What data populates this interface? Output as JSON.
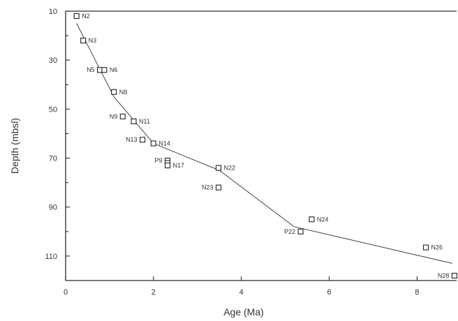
{
  "chart_data": {
    "type": "scatter",
    "xlabel": "Age (Ma)",
    "ylabel": "Depth (mbsl)",
    "xlim": [
      0,
      8.9
    ],
    "ylim": [
      10,
      120
    ],
    "y_inverted": true,
    "grid": false,
    "x_ticks": [
      0,
      2,
      4,
      6,
      8
    ],
    "x_tick_labels": [
      "0",
      "2",
      "4",
      "6",
      "8"
    ],
    "y_ticks": [
      10,
      30,
      50,
      70,
      90,
      110
    ],
    "y_tick_labels": [
      "10",
      "30",
      "50",
      "70",
      "90",
      "110"
    ],
    "y_minor_ticks": [
      20,
      40,
      60,
      80,
      100
    ],
    "points": [
      {
        "label": "N2",
        "x": 0.25,
        "y": 12,
        "label_side": "right"
      },
      {
        "label": "N3",
        "x": 0.4,
        "y": 22,
        "label_side": "right"
      },
      {
        "label": "N5",
        "x": 0.78,
        "y": 34,
        "label_side": "left"
      },
      {
        "label": "N6",
        "x": 0.88,
        "y": 34,
        "label_side": "right"
      },
      {
        "label": "N8",
        "x": 1.1,
        "y": 43,
        "label_side": "right"
      },
      {
        "label": "N9",
        "x": 1.3,
        "y": 53,
        "label_side": "left"
      },
      {
        "label": "N11",
        "x": 1.55,
        "y": 55,
        "label_side": "right"
      },
      {
        "label": "N13",
        "x": 1.75,
        "y": 62.5,
        "label_side": "left"
      },
      {
        "label": "N14",
        "x": 2.0,
        "y": 64,
        "label_side": "right"
      },
      {
        "label": "P9",
        "x": 2.32,
        "y": 71,
        "label_side": "left"
      },
      {
        "label": "",
        "x": 2.32,
        "y": 72,
        "label_side": "none"
      },
      {
        "label": "N17",
        "x": 2.32,
        "y": 73,
        "label_side": "right"
      },
      {
        "label": "N22",
        "x": 3.48,
        "y": 74,
        "label_side": "right"
      },
      {
        "label": "N23",
        "x": 3.48,
        "y": 82,
        "label_side": "left"
      },
      {
        "label": "N24",
        "x": 5.6,
        "y": 95,
        "label_side": "right"
      },
      {
        "label": "P22",
        "x": 5.35,
        "y": 100,
        "label_side": "left"
      },
      {
        "label": "N26",
        "x": 8.2,
        "y": 106.5,
        "label_side": "right"
      },
      {
        "label": "N28",
        "x": 8.85,
        "y": 118,
        "label_side": "left"
      }
    ],
    "trend_line": {
      "x": [
        0.25,
        1.1,
        2.0,
        3.5,
        5.2,
        8.8
      ],
      "y": [
        15,
        45,
        64,
        75,
        98,
        113
      ]
    }
  }
}
